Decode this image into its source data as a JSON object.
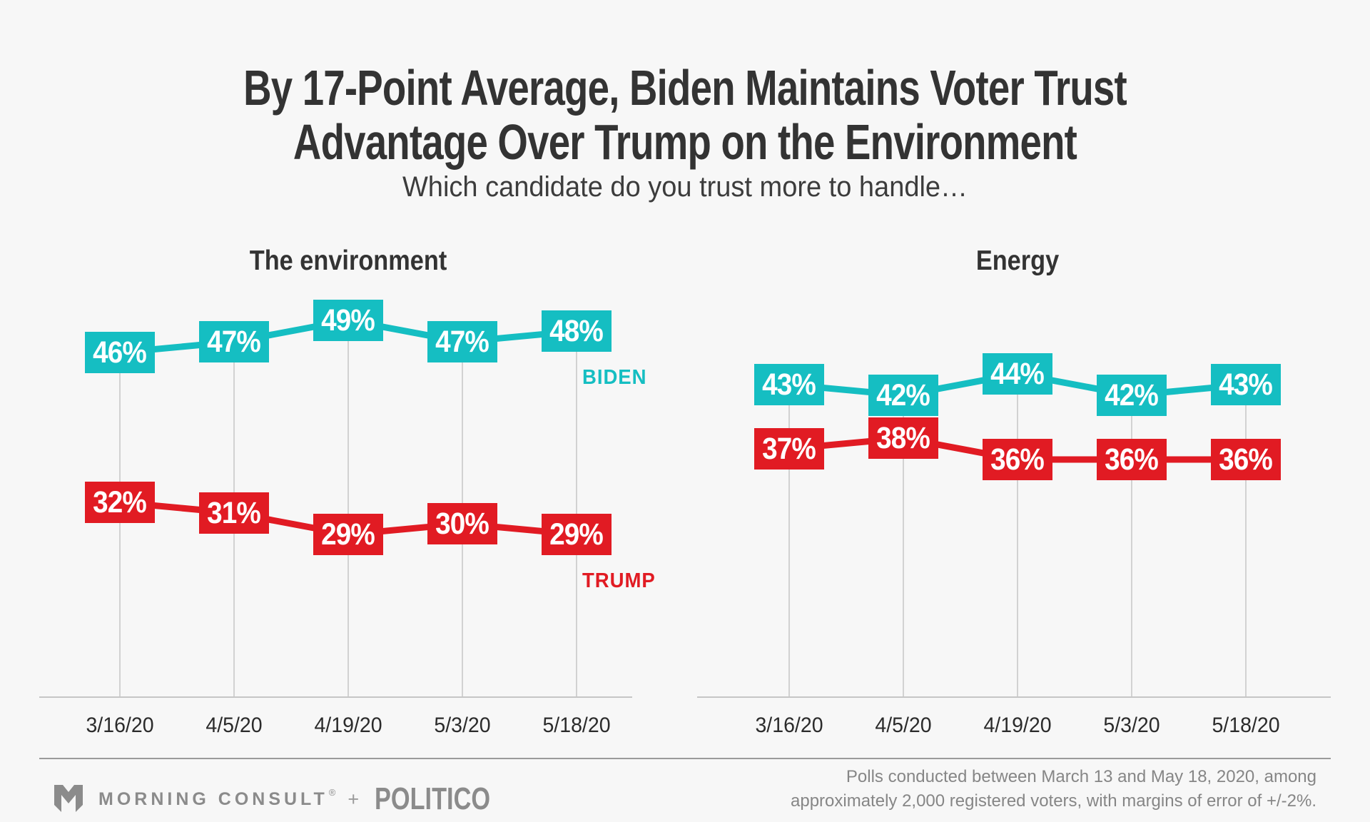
{
  "page": {
    "title_line1": "By 17-Point Average, Biden Maintains Voter Trust",
    "title_line2": "Advantage Over Trump on the Environment",
    "subtitle": "Which candidate do you trust more to handle…",
    "background": "#f7f7f7"
  },
  "colors": {
    "biden": "#15bec2",
    "trump": "#e11b23",
    "gridline": "#d2d2d2",
    "axis": "#c6c6c6",
    "title_text": "#333333",
    "footer_text": "#8b8b8b"
  },
  "chart_data": [
    {
      "type": "line",
      "title": "The environment",
      "x": [
        "3/16/20",
        "4/5/20",
        "4/19/20",
        "5/3/20",
        "5/18/20"
      ],
      "value_suffix": "%",
      "grid": "vertical-only",
      "legend_position": "inline-end-labels",
      "ylim": [
        25,
        52
      ],
      "series": [
        {
          "name": "BIDEN",
          "color_key": "biden",
          "values": [
            46,
            47,
            49,
            47,
            48
          ],
          "show_label": true
        },
        {
          "name": "TRUMP",
          "color_key": "trump",
          "values": [
            32,
            31,
            29,
            30,
            29
          ],
          "show_label": true
        }
      ]
    },
    {
      "type": "line",
      "title": "Energy",
      "x": [
        "3/16/20",
        "4/5/20",
        "4/19/20",
        "5/3/20",
        "5/18/20"
      ],
      "value_suffix": "%",
      "grid": "vertical-only",
      "legend_position": "none",
      "ylim": [
        25,
        52
      ],
      "series": [
        {
          "name": "BIDEN",
          "color_key": "biden",
          "values": [
            43,
            42,
            44,
            42,
            43
          ],
          "show_label": false
        },
        {
          "name": "TRUMP",
          "color_key": "trump",
          "values": [
            37,
            38,
            36,
            36,
            36
          ],
          "show_label": false
        }
      ]
    }
  ],
  "footer": {
    "brand": "MORNING CONSULT",
    "brand_reg": "®",
    "plus": "+",
    "partner": "POLITICO",
    "note_line1": "Polls conducted between March 13 and May 18, 2020, among",
    "note_line2": "approximately 2,000 registered voters, with margins of error of +/-2%."
  }
}
